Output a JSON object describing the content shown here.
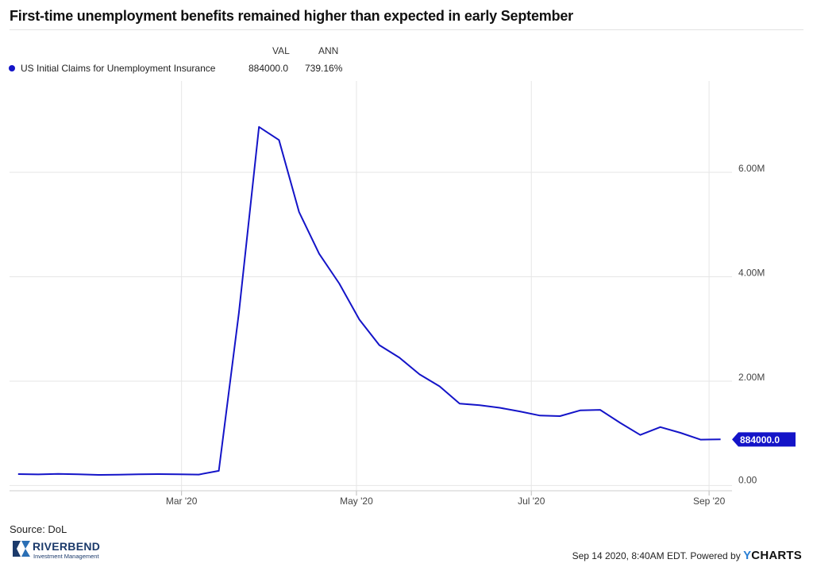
{
  "title": "First-time unemployment benefits remained higher than expected in early September",
  "legend": {
    "col_val": "VAL",
    "col_ann": "ANN",
    "series_name": "US Initial Claims for Unemployment Insurance",
    "value": "884000.0",
    "annual_change": "739.16%"
  },
  "colors": {
    "series": "#1414c8",
    "grid": "#e6e6e6",
    "axis_text": "#444444"
  },
  "last_value_label": "884000.0",
  "source": "Source: DoL",
  "logo": {
    "name": "RIVERBEND",
    "subtitle": "Investment Management"
  },
  "footer": {
    "text": "Sep 14 2020, 8:40AM EDT. Powered by",
    "brand_y": "Y",
    "brand_rest": "CHARTS"
  },
  "chart_data": {
    "type": "line",
    "title": "First-time unemployment benefits remained higher than expected in early September",
    "xlabel": "",
    "ylabel": "",
    "x_tick_labels": [
      "Mar '20",
      "May '20",
      "Jul '20",
      "Sep '20"
    ],
    "y_tick_labels": [
      "0.00",
      "2.00M",
      "4.00M",
      "6.00M"
    ],
    "y_ticks": [
      0,
      2000000,
      4000000,
      6000000
    ],
    "ylim": [
      -100000,
      7750000
    ],
    "xlim": [
      "2020-01-01",
      "2020-09-09"
    ],
    "grid": true,
    "legend_position": "top-left",
    "series": [
      {
        "name": "US Initial Claims for Unemployment Insurance",
        "x": [
          "2020-01-04",
          "2020-01-11",
          "2020-01-18",
          "2020-01-25",
          "2020-02-01",
          "2020-02-08",
          "2020-02-15",
          "2020-02-22",
          "2020-02-29",
          "2020-03-07",
          "2020-03-14",
          "2020-03-21",
          "2020-03-28",
          "2020-04-04",
          "2020-04-11",
          "2020-04-18",
          "2020-04-25",
          "2020-05-02",
          "2020-05-09",
          "2020-05-16",
          "2020-05-23",
          "2020-05-30",
          "2020-06-06",
          "2020-06-13",
          "2020-06-20",
          "2020-06-27",
          "2020-07-04",
          "2020-07-11",
          "2020-07-18",
          "2020-07-25",
          "2020-08-01",
          "2020-08-08",
          "2020-08-15",
          "2020-08-22",
          "2020-08-29",
          "2020-09-05"
        ],
        "values": [
          220000,
          214000,
          223000,
          217000,
          205000,
          207000,
          216000,
          219000,
          217000,
          211000,
          282000,
          3310000,
          6870000,
          6620000,
          5240000,
          4440000,
          3870000,
          3180000,
          2690000,
          2450000,
          2130000,
          1900000,
          1570000,
          1540000,
          1490000,
          1420000,
          1340000,
          1330000,
          1440000,
          1450000,
          1200000,
          970000,
          1120000,
          1010000,
          880000,
          884000
        ]
      }
    ]
  }
}
